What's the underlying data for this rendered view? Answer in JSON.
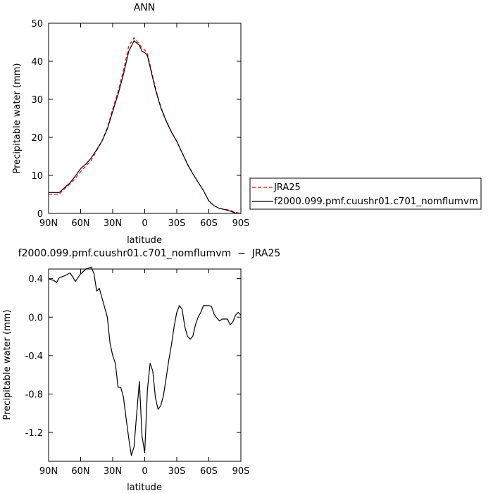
{
  "chart_data": [
    {
      "type": "line",
      "title": "ANN",
      "xlabel": "latitude",
      "ylabel": "Precipitable water (mm)",
      "xlim": [
        90,
        -90
      ],
      "ylim": [
        0,
        50
      ],
      "xticks": [
        90,
        60,
        30,
        0,
        -30,
        -60,
        -90
      ],
      "xtick_labels": [
        "90N",
        "60N",
        "30N",
        "0",
        "30S",
        "60S",
        "90S"
      ],
      "yticks": [
        0,
        10,
        20,
        30,
        40,
        50
      ],
      "ytick_labels": [
        "0",
        "10",
        "20",
        "30",
        "40",
        "50"
      ],
      "grid": false,
      "legend_position": "right",
      "series": [
        {
          "name": "JRA25",
          "color": "#ff0000",
          "dash": "dashed",
          "x": [
            90,
            85,
            80,
            75,
            70,
            65,
            60,
            55,
            50,
            45,
            40,
            35,
            30,
            25,
            20,
            15,
            10,
            5,
            2.5,
            0,
            -2.5,
            -5,
            -10,
            -15,
            -20,
            -25,
            -30,
            -35,
            -40,
            -45,
            -50,
            -55,
            -60,
            -65,
            -70,
            -75,
            -80,
            -85,
            -90
          ],
          "y": [
            5.0,
            5.0,
            5.1,
            6.5,
            7.7,
            9.2,
            11.0,
            12.5,
            14.0,
            16.5,
            19.0,
            22.5,
            27.5,
            32.0,
            37.5,
            44.0,
            46.2,
            44.5,
            43.5,
            43.0,
            42.0,
            39.0,
            33.0,
            28.0,
            24.5,
            21.5,
            19.0,
            16.0,
            13.0,
            10.5,
            8.2,
            6.0,
            3.2,
            2.0,
            1.3,
            1.1,
            0.8,
            0.3,
            0.0
          ]
        },
        {
          "name": "f2000.099.pmf.cuushr01.c701_nomflumvm",
          "color": "#000000",
          "dash": "solid",
          "x": [
            90,
            85,
            80,
            75,
            70,
            65,
            60,
            55,
            50,
            45,
            40,
            35,
            30,
            25,
            20,
            15,
            10,
            5,
            2.5,
            0,
            -2.5,
            -5,
            -10,
            -15,
            -20,
            -25,
            -30,
            -35,
            -40,
            -45,
            -50,
            -55,
            -60,
            -65,
            -70,
            -75,
            -80,
            -85,
            -90
          ],
          "y": [
            5.5,
            5.5,
            5.5,
            6.8,
            8.0,
            9.8,
            11.8,
            13.0,
            14.6,
            16.8,
            19.0,
            22.2,
            26.8,
            31.3,
            36.5,
            42.6,
            45.4,
            44.2,
            42.6,
            42.3,
            41.5,
            38.5,
            32.6,
            27.8,
            24.3,
            21.4,
            18.9,
            15.9,
            12.9,
            10.4,
            8.2,
            6.0,
            3.3,
            2.0,
            1.3,
            1.0,
            0.6,
            0.1,
            0.0
          ]
        }
      ]
    },
    {
      "type": "line",
      "title": "f2000.099.pmf.cuushr01.c701_nomflumvm  −  JRA25",
      "xlabel": "latitude",
      "ylabel": "Precipitable water (mm)",
      "xlim": [
        90,
        -90
      ],
      "ylim": [
        -1.5,
        0.5
      ],
      "xticks": [
        90,
        60,
        30,
        0,
        -30,
        -60,
        -90
      ],
      "xtick_labels": [
        "90N",
        "60N",
        "30N",
        "0",
        "30S",
        "60S",
        "90S"
      ],
      "yticks": [
        0.4,
        0.0,
        -0.4,
        -0.8,
        -1.2
      ],
      "ytick_labels": [
        "0.4",
        "0.0",
        "-0.4",
        "-0.8",
        "-1.2"
      ],
      "grid": false,
      "series": [
        {
          "name": "",
          "color": "#000000",
          "dash": "solid",
          "x": [
            90,
            85,
            82.5,
            80,
            75,
            70,
            67.5,
            65,
            60,
            55,
            52.5,
            50,
            47.5,
            45,
            42.5,
            40,
            37.5,
            35,
            32.5,
            30,
            27.5,
            25,
            22.5,
            20,
            17.5,
            15,
            12.5,
            10,
            7.5,
            5,
            2.5,
            0,
            -2.5,
            -5,
            -7.5,
            -10,
            -12.5,
            -15,
            -17.5,
            -20,
            -22.5,
            -25,
            -27.5,
            -30,
            -32.5,
            -35,
            -37.5,
            -40,
            -42.5,
            -45,
            -47.5,
            -50,
            -52.5,
            -55,
            -60,
            -62.5,
            -65,
            -67.5,
            -70,
            -72.5,
            -75,
            -77.5,
            -80,
            -82.5,
            -85,
            -87.5,
            -90
          ],
          "y": [
            0.4,
            0.38,
            0.36,
            0.41,
            0.43,
            0.46,
            0.42,
            0.37,
            0.45,
            0.5,
            0.51,
            0.52,
            0.45,
            0.27,
            0.3,
            0.2,
            0.1,
            0.0,
            -0.27,
            -0.4,
            -0.48,
            -0.73,
            -0.73,
            -0.83,
            -1.05,
            -1.26,
            -1.44,
            -1.35,
            -1.0,
            -0.67,
            -1.24,
            -1.41,
            -0.76,
            -0.48,
            -0.56,
            -0.84,
            -0.96,
            -0.92,
            -0.82,
            -0.64,
            -0.45,
            -0.29,
            -0.1,
            0.05,
            0.12,
            0.08,
            -0.1,
            -0.2,
            -0.23,
            -0.2,
            -0.08,
            0.0,
            0.05,
            0.12,
            0.12,
            0.11,
            0.03,
            -0.01,
            -0.04,
            -0.02,
            -0.02,
            -0.02,
            -0.08,
            -0.05,
            0.02,
            0.05,
            0.02
          ]
        }
      ]
    }
  ]
}
